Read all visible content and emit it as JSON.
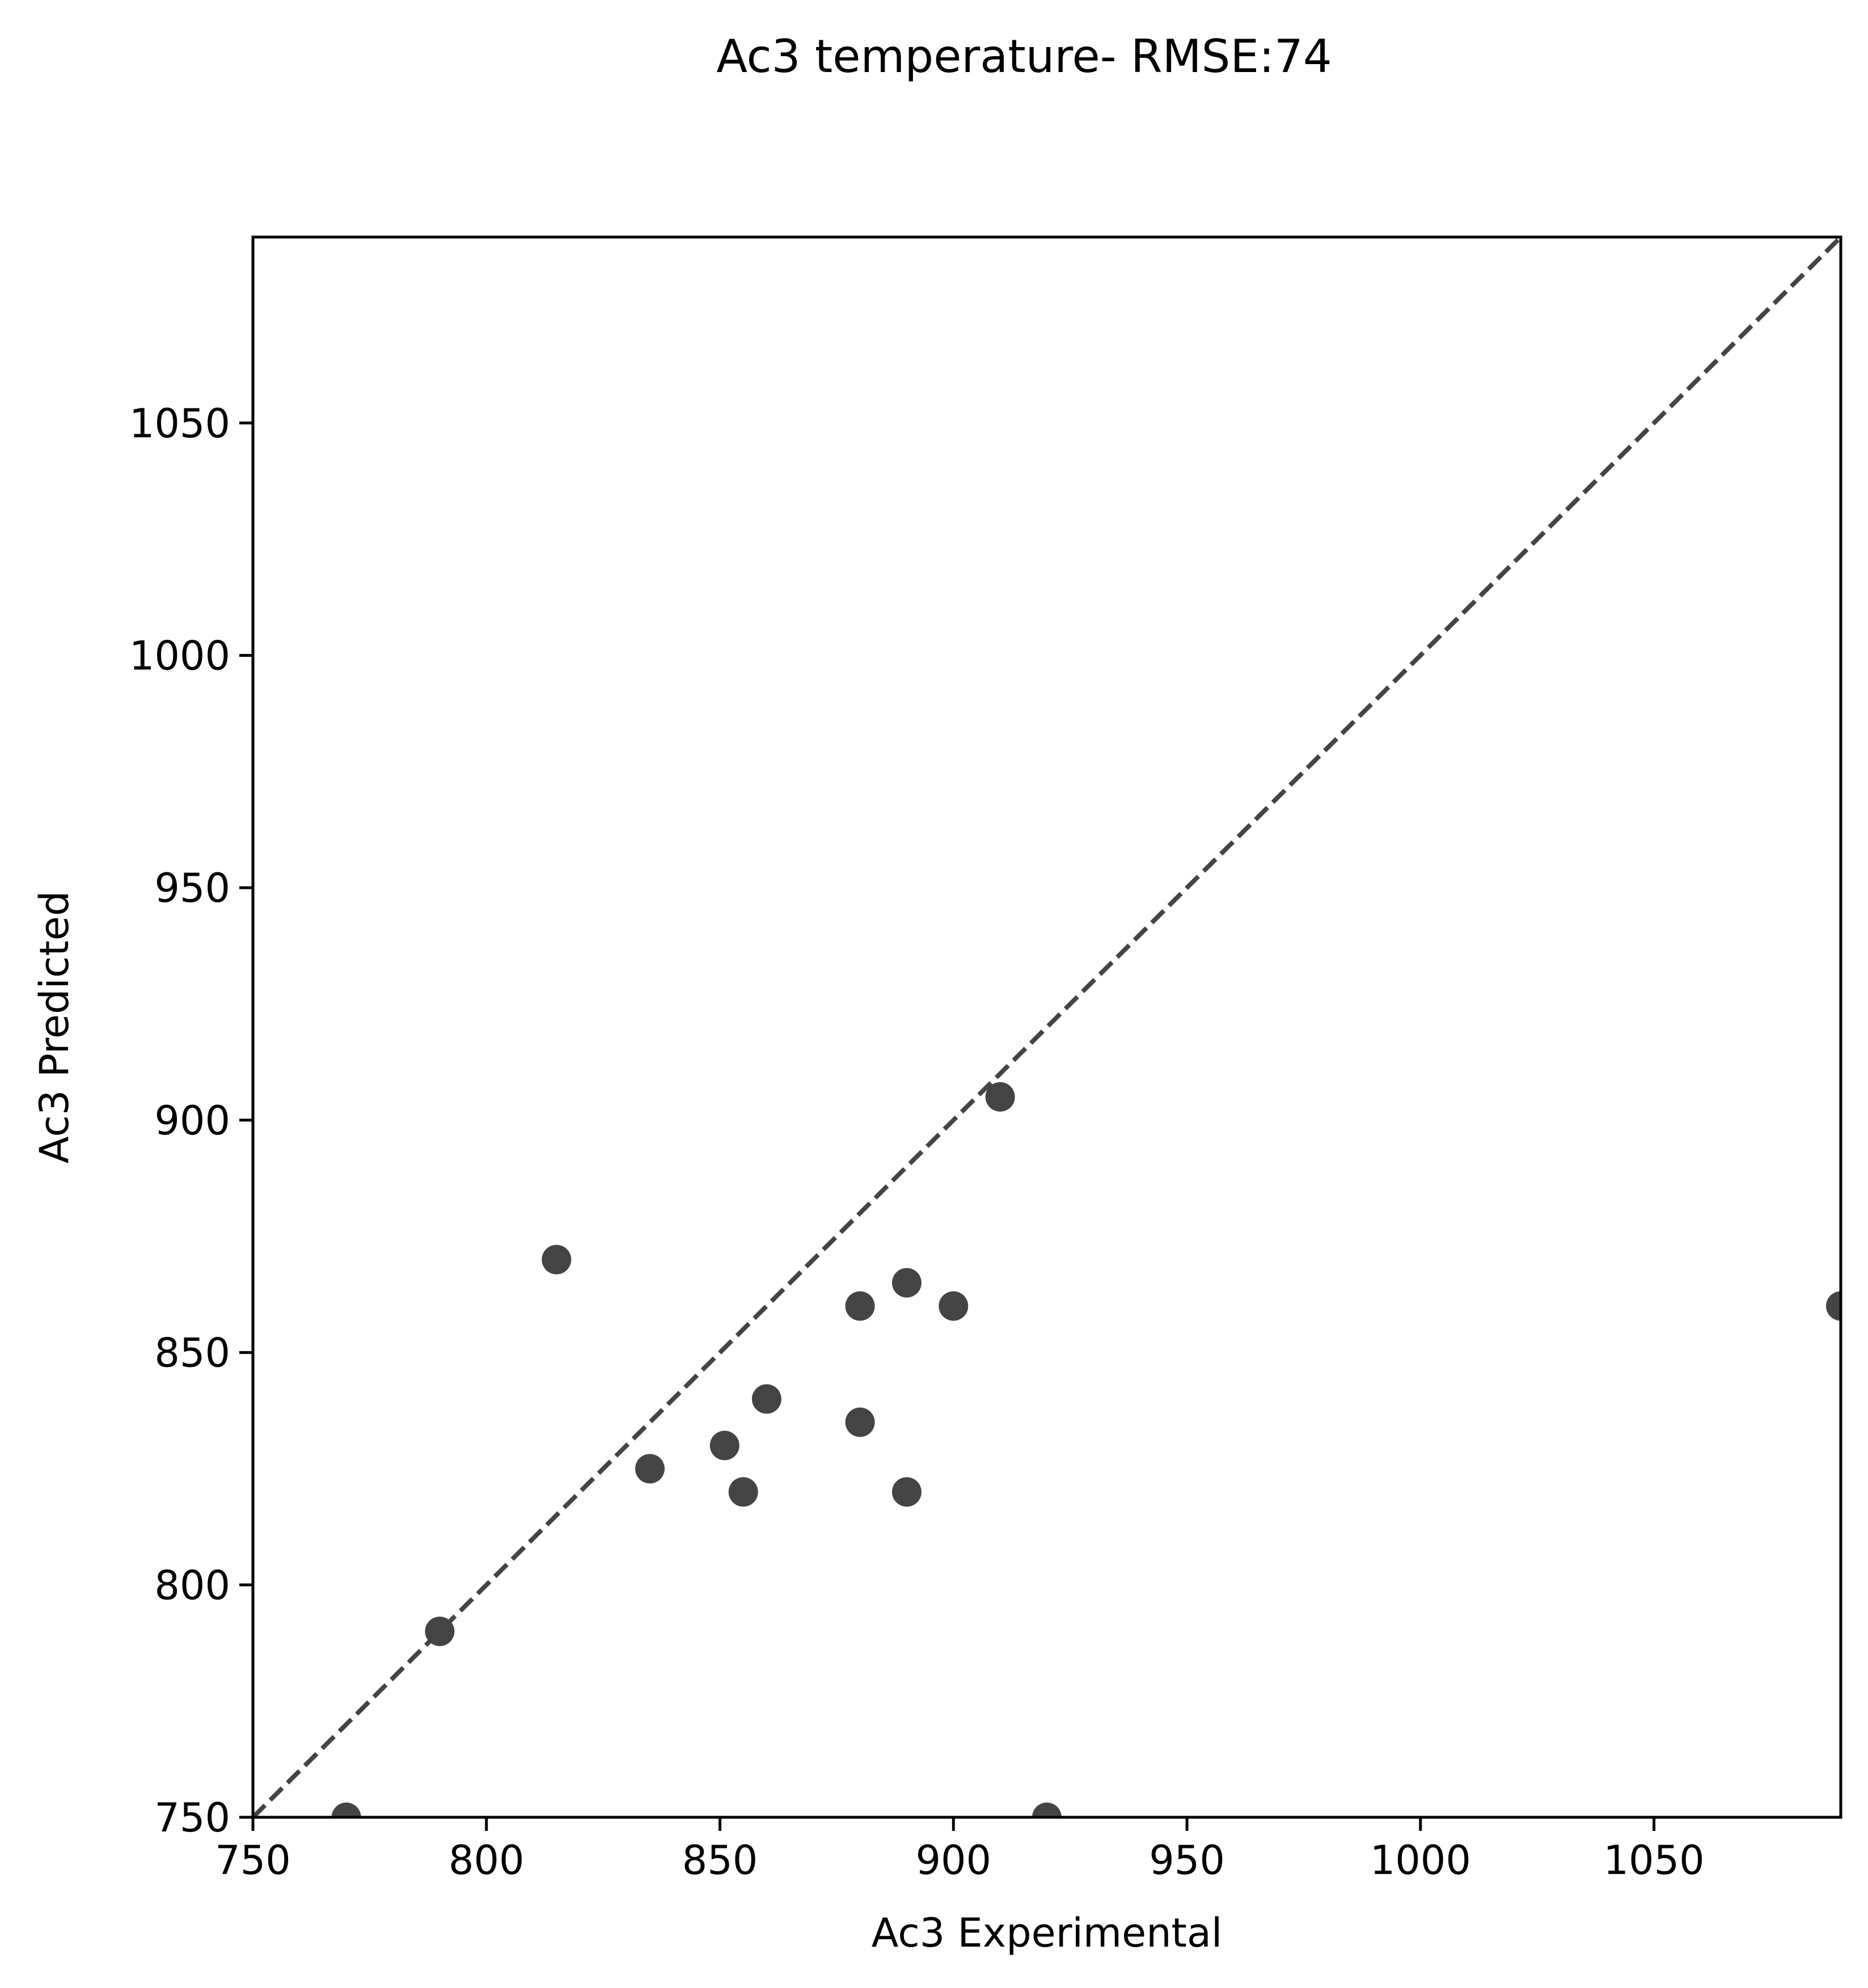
{
  "chart_data": {
    "type": "scatter",
    "title": "Ac3 temperature- RMSE:74",
    "xlabel": "Ac3 Experimental",
    "ylabel": "Ac3 Predicted",
    "xlim": [
      750,
      1090
    ],
    "ylim": [
      750,
      1090
    ],
    "xticks": [
      "750",
      "800",
      "850",
      "900",
      "950",
      "1000",
      "1050"
    ],
    "yticks": [
      "750",
      "800",
      "850",
      "900",
      "950",
      "1000",
      "1050"
    ],
    "grid": false,
    "point_color": "#444444",
    "reference_line": {
      "style": "dashed",
      "color": "#444444",
      "from": [
        750,
        750
      ],
      "to": [
        1090,
        1090
      ]
    },
    "series": [
      {
        "points": [
          {
            "x": 770,
            "y": 750
          },
          {
            "x": 790,
            "y": 790
          },
          {
            "x": 815,
            "y": 870
          },
          {
            "x": 835,
            "y": 825
          },
          {
            "x": 851,
            "y": 830
          },
          {
            "x": 855,
            "y": 820
          },
          {
            "x": 860,
            "y": 840
          },
          {
            "x": 880,
            "y": 860
          },
          {
            "x": 880,
            "y": 835
          },
          {
            "x": 890,
            "y": 865
          },
          {
            "x": 890,
            "y": 820
          },
          {
            "x": 900,
            "y": 860
          },
          {
            "x": 910,
            "y": 905
          },
          {
            "x": 920,
            "y": 750
          },
          {
            "x": 1090,
            "y": 860
          }
        ]
      }
    ]
  }
}
